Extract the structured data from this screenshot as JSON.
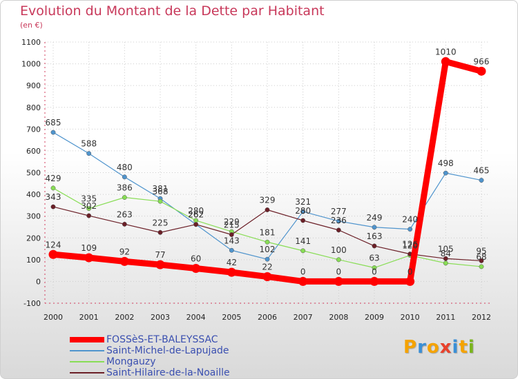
{
  "title": "Evolution du Montant de la Dette par Habitant",
  "subtitle": "(en €)",
  "logo": {
    "text": "Proxiti",
    "colors": [
      "#f5a300",
      "#3a8fd6",
      "#f5a300",
      "#e8412b",
      "#3a8fd6",
      "#f5a300",
      "#7ab51d"
    ]
  },
  "chart_data": {
    "type": "line",
    "title": "Evolution du Montant de la Dette par Habitant",
    "ylabel": "(en €)",
    "xlabel": "",
    "ylim": [
      -100,
      1100
    ],
    "yticks": [
      -100,
      0,
      100,
      200,
      300,
      400,
      500,
      600,
      700,
      800,
      900,
      1000,
      1100
    ],
    "grid": true,
    "legend": "bottom-left",
    "x": [
      "2000",
      "2001",
      "2002",
      "2003",
      "2004",
      "2005",
      "2006",
      "2007",
      "2008",
      "2009",
      "2010",
      "2011",
      "2012"
    ],
    "series": [
      {
        "name": "FOSSèS-ET-BALEYSSAC",
        "color": "#ff0000",
        "values": [
          124,
          109,
          92,
          77,
          60,
          42,
          22,
          0,
          0,
          0,
          0,
          1010,
          966
        ]
      },
      {
        "name": "Saint-Michel-de-Lapujade",
        "color": "#4f94cd",
        "values": [
          685,
          588,
          480,
          381,
          262,
          143,
          102,
          321,
          277,
          249,
          240,
          498,
          465
        ]
      },
      {
        "name": "Mongauzy",
        "color": "#88dd55",
        "values": [
          429,
          335,
          386,
          368,
          280,
          229,
          181,
          141,
          100,
          63,
          120,
          84,
          68
        ]
      },
      {
        "name": "Saint-Hilaire-de-la-Noaille",
        "color": "#6b1f27",
        "values": [
          343,
          302,
          263,
          225,
          262,
          215,
          329,
          280,
          236,
          163,
          126,
          105,
          95
        ]
      }
    ]
  }
}
